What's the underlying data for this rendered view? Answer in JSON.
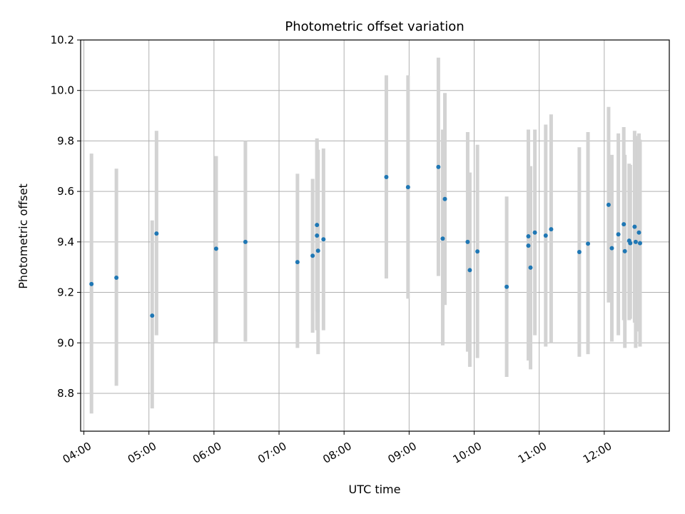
{
  "chart_data": {
    "type": "scatter",
    "title": "Photometric offset variation",
    "xlabel": "UTC time",
    "ylabel": "Photometric offset",
    "x_unit": "UTC time (HH:MM)",
    "xlim": [
      "03:57",
      "13:00"
    ],
    "ylim": [
      8.65,
      10.2
    ],
    "x_ticks": [
      "04:00",
      "05:00",
      "06:00",
      "07:00",
      "08:00",
      "09:00",
      "10:00",
      "11:00",
      "12:00"
    ],
    "y_ticks": [
      "8.8",
      "9.0",
      "9.2",
      "9.4",
      "9.6",
      "9.8",
      "10.0",
      "10.2"
    ],
    "grid": true,
    "colors": {
      "point": "#1f77b4",
      "errorbar": "#d3d3d3",
      "grid": "#b0b0b0",
      "axes": "#000000"
    },
    "points": [
      {
        "t": "04:07",
        "y": 9.233,
        "lo": 8.72,
        "hi": 9.75
      },
      {
        "t": "04:30",
        "y": 9.258,
        "lo": 8.83,
        "hi": 9.69
      },
      {
        "t": "05:03",
        "y": 9.108,
        "lo": 8.74,
        "hi": 9.485
      },
      {
        "t": "05:07",
        "y": 9.433,
        "lo": 9.03,
        "hi": 9.84
      },
      {
        "t": "06:02",
        "y": 9.373,
        "lo": 9.0,
        "hi": 9.74
      },
      {
        "t": "06:29",
        "y": 9.4,
        "lo": 9.005,
        "hi": 9.8
      },
      {
        "t": "07:17",
        "y": 9.32,
        "lo": 8.98,
        "hi": 9.67
      },
      {
        "t": "07:31",
        "y": 9.345,
        "lo": 9.04,
        "hi": 9.65
      },
      {
        "t": "07:35",
        "y": 9.467,
        "lo": 9.125,
        "hi": 9.8
      },
      {
        "t": "07:35",
        "y": 9.425,
        "lo": 9.05,
        "hi": 9.81
      },
      {
        "t": "07:36",
        "y": 9.365,
        "lo": 8.955,
        "hi": 9.765
      },
      {
        "t": "07:41",
        "y": 9.41,
        "lo": 9.05,
        "hi": 9.77
      },
      {
        "t": "08:39",
        "y": 9.657,
        "lo": 9.255,
        "hi": 10.06
      },
      {
        "t": "08:59",
        "y": 9.617,
        "lo": 9.175,
        "hi": 10.06
      },
      {
        "t": "09:27",
        "y": 9.697,
        "lo": 9.265,
        "hi": 10.13
      },
      {
        "t": "09:31",
        "y": 9.413,
        "lo": 8.99,
        "hi": 9.845
      },
      {
        "t": "09:33",
        "y": 9.57,
        "lo": 9.15,
        "hi": 9.99
      },
      {
        "t": "09:54",
        "y": 9.4,
        "lo": 8.965,
        "hi": 9.835
      },
      {
        "t": "09:56",
        "y": 9.288,
        "lo": 8.905,
        "hi": 9.675
      },
      {
        "t": "10:03",
        "y": 9.362,
        "lo": 8.94,
        "hi": 9.785
      },
      {
        "t": "10:30",
        "y": 9.222,
        "lo": 8.865,
        "hi": 9.58
      },
      {
        "t": "10:50",
        "y": 9.385,
        "lo": 8.93,
        "hi": 9.845
      },
      {
        "t": "10:50",
        "y": 9.422,
        "lo": 8.95,
        "hi": 9.845
      },
      {
        "t": "10:52",
        "y": 9.298,
        "lo": 8.895,
        "hi": 9.7
      },
      {
        "t": "10:56",
        "y": 9.437,
        "lo": 9.03,
        "hi": 9.845
      },
      {
        "t": "11:06",
        "y": 9.425,
        "lo": 8.985,
        "hi": 9.865
      },
      {
        "t": "11:11",
        "y": 9.45,
        "lo": 9.0,
        "hi": 9.905
      },
      {
        "t": "11:37",
        "y": 9.36,
        "lo": 8.945,
        "hi": 9.775
      },
      {
        "t": "11:45",
        "y": 9.393,
        "lo": 8.955,
        "hi": 9.835
      },
      {
        "t": "12:04",
        "y": 9.547,
        "lo": 9.16,
        "hi": 9.935
      },
      {
        "t": "12:07",
        "y": 9.375,
        "lo": 9.005,
        "hi": 9.745
      },
      {
        "t": "12:13",
        "y": 9.43,
        "lo": 9.03,
        "hi": 9.83
      },
      {
        "t": "12:18",
        "y": 9.47,
        "lo": 9.09,
        "hi": 9.855
      },
      {
        "t": "12:19",
        "y": 9.363,
        "lo": 8.98,
        "hi": 9.745
      },
      {
        "t": "12:23",
        "y": 9.405,
        "lo": 9.09,
        "hi": 9.71
      },
      {
        "t": "12:24",
        "y": 9.395,
        "lo": 9.095,
        "hi": 9.705
      },
      {
        "t": "12:28",
        "y": 9.46,
        "lo": 9.08,
        "hi": 9.84
      },
      {
        "t": "12:29",
        "y": 9.4,
        "lo": 8.98,
        "hi": 9.82
      },
      {
        "t": "12:32",
        "y": 9.437,
        "lo": 9.045,
        "hi": 9.83
      },
      {
        "t": "12:33",
        "y": 9.395,
        "lo": 8.985,
        "hi": 9.805
      }
    ]
  }
}
